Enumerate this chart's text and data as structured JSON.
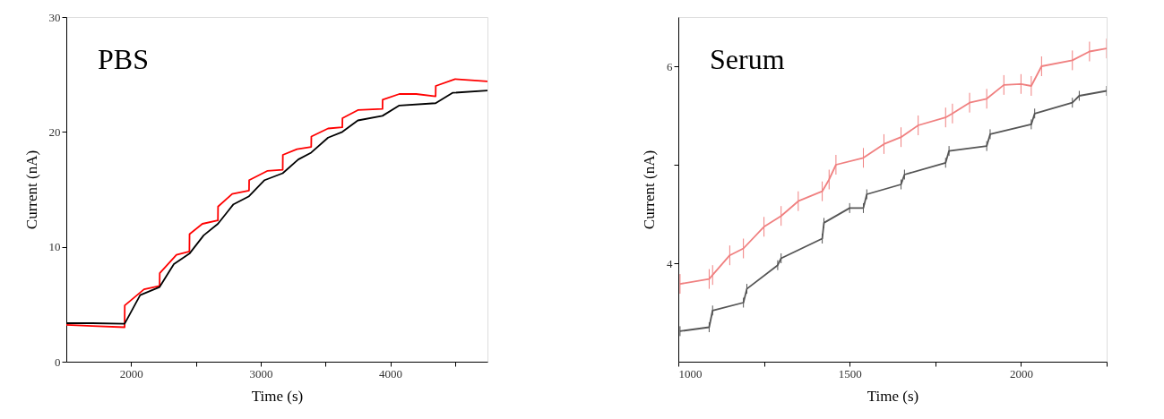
{
  "chart_data": [
    {
      "type": "line",
      "xlabel": "Time (s)",
      "ylabel": "Current (nA)",
      "annotations": [
        "PBS"
      ],
      "xlim": [
        1500,
        4750
      ],
      "xticks": [
        2000,
        {
          "value": 2500,
          "label": null
        },
        3000,
        {
          "value": 3500,
          "label": null
        },
        4000,
        {
          "value": 4500,
          "label": null
        }
      ],
      "ylim": [
        0,
        30
      ],
      "yticks": [
        0,
        10,
        20,
        30
      ],
      "grid": false,
      "marker": "none",
      "line_style": "solid",
      "series": [
        {
          "color": "#ff0000",
          "x": [
            1500,
            1700,
            1950,
            1951,
            2100,
            2220,
            2221,
            2350,
            2450,
            2451,
            2550,
            2670,
            2671,
            2780,
            2910,
            2911,
            3050,
            3170,
            3171,
            3280,
            3390,
            3391,
            3520,
            3630,
            3631,
            3750,
            3940,
            3941,
            4070,
            4200,
            4350,
            4351,
            4500,
            4750
          ],
          "values": [
            3.2,
            3.1,
            3.0,
            4.9,
            6.3,
            6.6,
            7.7,
            9.3,
            9.6,
            11.1,
            12.0,
            12.3,
            13.5,
            14.6,
            14.9,
            15.8,
            16.6,
            16.7,
            18.0,
            18.5,
            18.7,
            19.6,
            20.3,
            20.4,
            21.2,
            21.9,
            22.0,
            22.8,
            23.3,
            23.3,
            23.1,
            24.0,
            24.6,
            24.4
          ]
        },
        {
          "color": "#000000",
          "x": [
            1500,
            1700,
            1950,
            2070,
            2220,
            2330,
            2450,
            2560,
            2670,
            2790,
            2910,
            3030,
            3170,
            3290,
            3390,
            3520,
            3630,
            3750,
            3940,
            4070,
            4350,
            4480,
            4750
          ],
          "values": [
            3.35,
            3.35,
            3.3,
            5.8,
            6.5,
            8.5,
            9.4,
            11.0,
            12.0,
            13.7,
            14.4,
            15.8,
            16.4,
            17.6,
            18.2,
            19.5,
            20.0,
            21.0,
            21.4,
            22.3,
            22.5,
            23.4,
            23.6
          ]
        }
      ]
    },
    {
      "type": "line",
      "xlabel": "Time (s)",
      "ylabel": "Current (nA)",
      "annotations": [
        "Serum"
      ],
      "xlim": [
        1000,
        2250
      ],
      "xticks": [
        1000,
        {
          "value": 1250,
          "label": null
        },
        1500,
        {
          "value": 1750,
          "label": null
        },
        2000,
        {
          "value": 2250,
          "label": null
        }
      ],
      "ylim": [
        3,
        6.5
      ],
      "yticks": [
        4,
        {
          "value": 5,
          "label": null
        },
        6
      ],
      "grid": false,
      "marker": "none",
      "line_style": "solid",
      "series": [
        {
          "color": "#f08080",
          "x": [
            1005,
            1090,
            1100,
            1150,
            1190,
            1250,
            1300,
            1350,
            1420,
            1440,
            1460,
            1540,
            1600,
            1650,
            1700,
            1780,
            1800,
            1850,
            1900,
            1950,
            2000,
            2030,
            2060,
            2150,
            2200,
            2250
          ],
          "values": [
            3.79,
            3.84,
            3.88,
            4.08,
            4.15,
            4.37,
            4.48,
            4.63,
            4.73,
            4.85,
            5.0,
            5.07,
            5.21,
            5.28,
            5.4,
            5.48,
            5.52,
            5.63,
            5.67,
            5.81,
            5.82,
            5.8,
            6.0,
            6.06,
            6.15,
            6.18
          ],
          "errors": [
            0.1,
            0.1,
            0.1,
            0.1,
            0.1,
            0.1,
            0.1,
            0.1,
            0.1,
            0.1,
            0.1,
            0.1,
            0.1,
            0.1,
            0.1,
            0.1,
            0.1,
            0.1,
            0.1,
            0.1,
            0.1,
            0.1,
            0.1,
            0.1,
            0.1,
            0.1
          ]
        },
        {
          "color": "#555555",
          "x": [
            1005,
            1090,
            1100,
            1190,
            1200,
            1290,
            1300,
            1420,
            1425,
            1500,
            1540,
            1550,
            1650,
            1660,
            1780,
            1790,
            1900,
            1910,
            2030,
            2040,
            2150,
            2170,
            2250
          ],
          "values": [
            3.31,
            3.35,
            3.52,
            3.6,
            3.74,
            3.98,
            4.05,
            4.25,
            4.41,
            4.56,
            4.56,
            4.7,
            4.8,
            4.9,
            5.02,
            5.14,
            5.19,
            5.31,
            5.41,
            5.52,
            5.63,
            5.7,
            5.75
          ],
          "errors": [
            0.05,
            0.05,
            0.05,
            0.05,
            0.05,
            0.05,
            0.05,
            0.05,
            0.05,
            0.05,
            0.05,
            0.05,
            0.05,
            0.05,
            0.05,
            0.05,
            0.05,
            0.05,
            0.05,
            0.05,
            0.05,
            0.05,
            0.05
          ]
        }
      ]
    }
  ]
}
